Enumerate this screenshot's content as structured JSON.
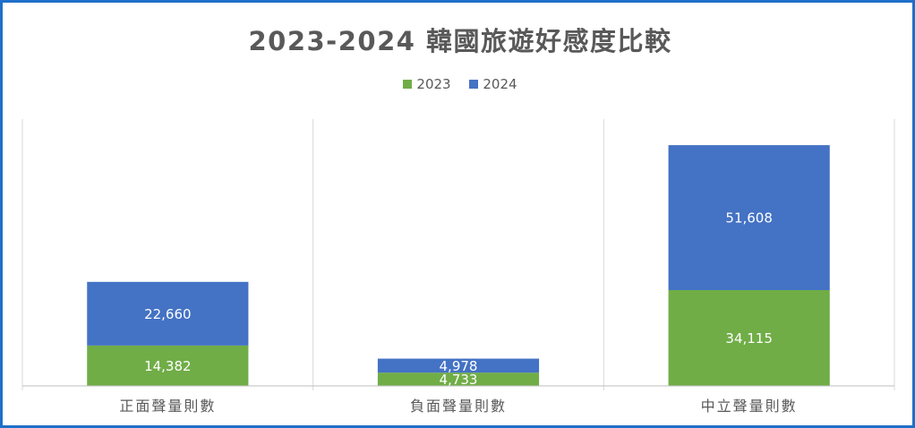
{
  "chart_data": {
    "type": "bar",
    "stacked": true,
    "title": "2023-2024 韓國旅遊好感度比較",
    "categories": [
      "正面聲量則數",
      "負面聲量則數",
      "中立聲量則數"
    ],
    "series": [
      {
        "name": "2023",
        "color": "#70ad47",
        "values": [
          14382,
          4733,
          34115
        ]
      },
      {
        "name": "2024",
        "color": "#4472c4",
        "values": [
          22660,
          4978,
          51608
        ]
      }
    ],
    "value_labels": {
      "2023": [
        "14,382",
        "4,733",
        "34,115"
      ],
      "2024": [
        "22,660",
        "4,978",
        "51,608"
      ]
    },
    "legend_position": "top",
    "grid": false,
    "category_separators": true,
    "ylim": [
      0,
      95000
    ]
  }
}
